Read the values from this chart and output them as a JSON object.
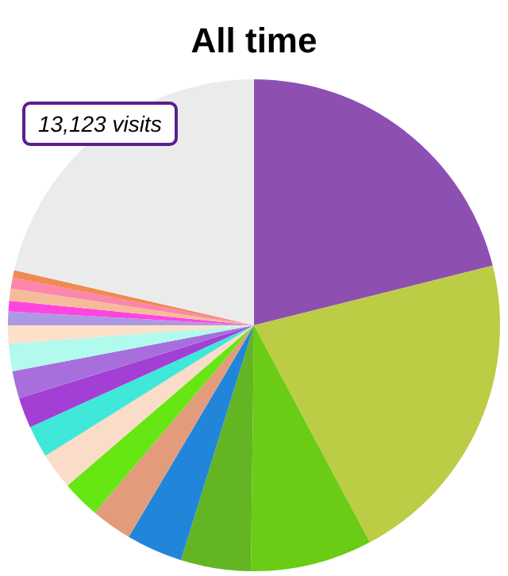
{
  "chart_data": {
    "type": "pie",
    "title": "All time",
    "annotations": [
      "13,123 visits"
    ],
    "categories": [
      null,
      null,
      null,
      null,
      null,
      null,
      null,
      null,
      null,
      null,
      null,
      null,
      null,
      null,
      null,
      null,
      null,
      null,
      null
    ],
    "values": [
      21.1,
      21.1,
      8.0,
      4.6,
      3.7,
      2.7,
      2.5,
      2.4,
      2.1,
      2.0,
      1.8,
      1.8,
      1.2,
      0.9,
      0.7,
      0.8,
      0.7,
      0.5,
      21.4
    ],
    "colors": [
      "#8e4fb3",
      "#bccc44",
      "#6acc14",
      "#63b524",
      "#2185d9",
      "#e29c7c",
      "#66e612",
      "#fadcc8",
      "#3fe8d8",
      "#a33fd4",
      "#a86fdc",
      "#b2f9ee",
      "#fde0c9",
      "#ad99e3",
      "#ff45e0",
      "#f5bc9a",
      "#fd86ad",
      "#f08a52",
      "#ebebeb"
    ]
  }
}
